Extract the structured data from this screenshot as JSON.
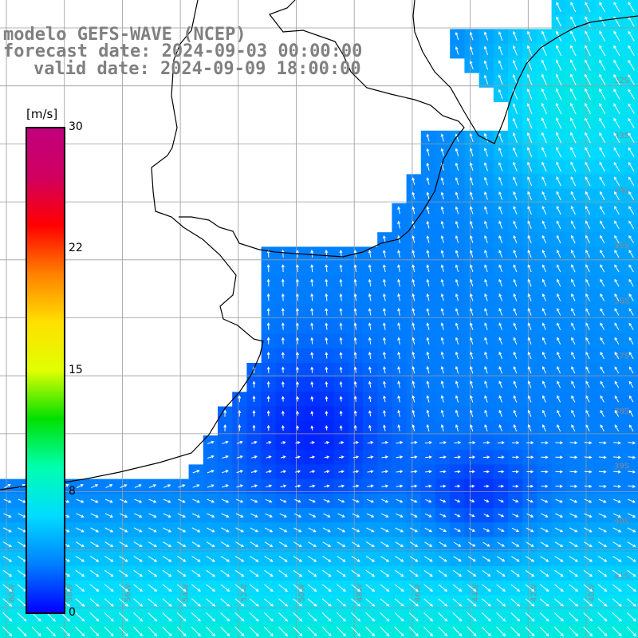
{
  "map": {
    "title": "modelo GEFS-WAVE (NCEP)",
    "forecast_date": "forecast date: 2024-09-03 00:00:00",
    "valid_date": "valid date: 2024-09-09 18:00:00",
    "grid_lon_labels": [
      "60W",
      "58W",
      "56W",
      "54W",
      "52W",
      "50W",
      "48W",
      "46W",
      "44W",
      "42W",
      "40W"
    ],
    "grid_lat_labels": [
      "32S",
      "33S",
      "34S",
      "35S",
      "36S",
      "37S",
      "38S",
      "39S",
      "40S",
      "41S"
    ],
    "colors": {
      "land": "#ffffff",
      "coast": "#000000",
      "grid": "#9a9a9a",
      "arrow": "#ffffff",
      "title_text": "#808080"
    }
  },
  "colorbar": {
    "units": "[m/s]",
    "min": 0,
    "max": 30,
    "tick_labels": [
      "30",
      "22",
      "15",
      "8",
      "0"
    ],
    "tick_values": [
      30,
      22,
      15,
      8,
      0
    ],
    "stops": [
      "#0000ff",
      "#0080ff",
      "#00dcff",
      "#00ffb0",
      "#00e000",
      "#e0ff00",
      "#ffe000",
      "#ff8000",
      "#ff0000",
      "#d00060",
      "#c0007c"
    ]
  }
}
